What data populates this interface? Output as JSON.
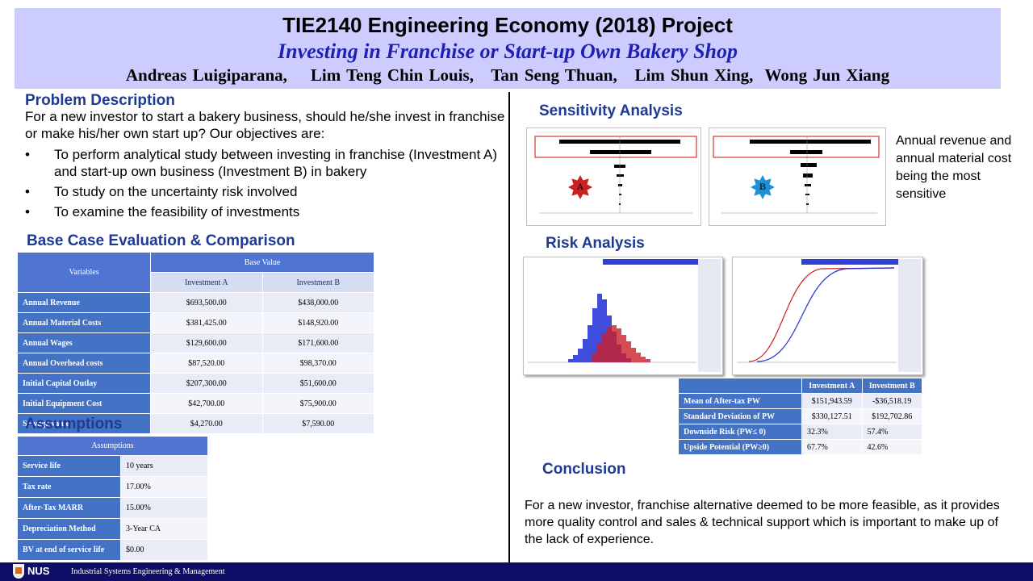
{
  "header": {
    "title": "TIE2140 Engineering Economy (2018) Project",
    "subtitle": "Investing in Franchise or Start-up Own Bakery Shop",
    "authors": "Andreas Luigiparana,    Lim Teng Chin Louis,   Tan Seng Thuan,   Lim Shun Xing,  Wong Jun Xiang"
  },
  "problem": {
    "heading": "Problem Description",
    "intro": "For a new investor to start a bakery business, should he/she invest in franchise or make his/her own start up? Our objectives are:",
    "bullets": [
      "To perform analytical study between investing in franchise (Investment A) and start-up own business (Investment B) in bakery",
      "To study on the uncertainty risk involved",
      "To examine the feasibility of investments"
    ]
  },
  "base_case": {
    "heading": "Base Case Evaluation & Comparison",
    "col_variables": "Variables",
    "col_base_value": "Base Value",
    "col_a": "Investment A",
    "col_b": "Investment B",
    "rows": [
      {
        "label": "Annual Revenue",
        "a": "$693,500.00",
        "b": "$438,000.00"
      },
      {
        "label": "Annual Material Costs",
        "a": "$381,425.00",
        "b": "$148,920.00"
      },
      {
        "label": "Annual Wages",
        "a": "$129,600.00",
        "b": "$171,600.00"
      },
      {
        "label": "Annual Overhead costs",
        "a": "$87,520.00",
        "b": "$98,370.00"
      },
      {
        "label": "Initial Capital Outlay",
        "a": "$207,300.00",
        "b": "$51,600.00"
      },
      {
        "label": "Initial Equipment Cost",
        "a": "$42,700.00",
        "b": "$75,900.00"
      },
      {
        "label": "Salvage value",
        "a": "$4,270.00",
        "b": "$7,590.00"
      }
    ]
  },
  "assumptions": {
    "heading": "Assumptions",
    "table_header": "Assumptions",
    "rows": [
      {
        "label": "Service life",
        "value": "10 years"
      },
      {
        "label": "Tax rate",
        "value": "17.00%"
      },
      {
        "label": "After-Tax MARR",
        "value": "15.00%"
      },
      {
        "label": "Depreciation Method",
        "value": "3-Year CA"
      },
      {
        "label": "BV at end of service life",
        "value": "$0.00"
      }
    ]
  },
  "sensitivity": {
    "heading": "Sensitivity Analysis",
    "badge_a": "A",
    "badge_b": "B",
    "note": "Annual revenue and annual material cost being the most sensitive",
    "colors": {
      "badge_a": "#cc1f1f",
      "badge_b": "#1f8fd6",
      "highlight": "#cc3a2a"
    }
  },
  "risk": {
    "heading": "Risk Analysis",
    "colors": {
      "a": "#1f2fd6",
      "b": "#cc1f2a"
    },
    "col_a": "Investment A",
    "col_b": "Investment B",
    "rows": [
      {
        "label": "Mean of After-tax PW",
        "a": "$151,943.59",
        "b": "-$36,518.19"
      },
      {
        "label": "Standard Deviation of PW",
        "a": "$330,127.51",
        "b": "$192,702.86"
      },
      {
        "label": "Downside Risk (PW≤ 0)",
        "a": "32.3%",
        "b": "57.4%"
      },
      {
        "label": "Upside Potential (PW≥0)",
        "a": "67.7%",
        "b": "42.6%"
      }
    ]
  },
  "conclusion": {
    "heading": "Conclusion",
    "text": "For a new investor, franchise alternative deemed to be more feasible, as it provides more quality control and sales & technical support which is important to make up of the lack of experience."
  },
  "footer": {
    "logo": "NUS",
    "dept": "Industrial Systems Engineering & Management"
  }
}
